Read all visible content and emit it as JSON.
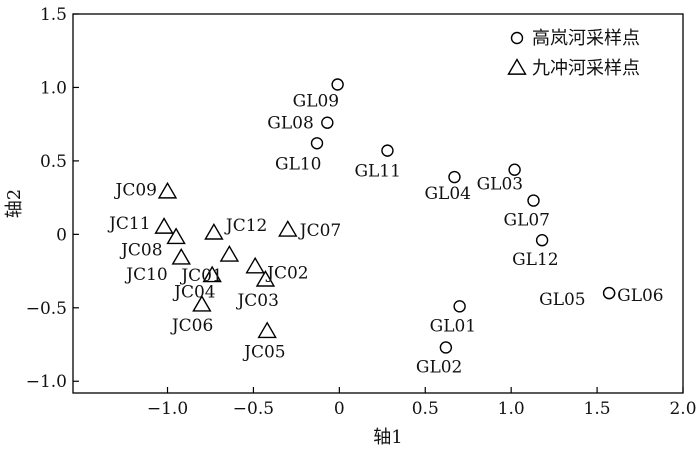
{
  "chart_data": {
    "type": "scatter",
    "xlabel": "轴1",
    "ylabel": "轴2",
    "xlim": [
      -1.55,
      2.0
    ],
    "ylim": [
      -1.08,
      1.5
    ],
    "xticks": [
      -1.0,
      -0.5,
      0,
      0.5,
      1.0,
      1.5,
      2.0
    ],
    "xtick_labels": [
      "−1.0",
      "−0.5",
      "0",
      "0.5",
      "1.0",
      "1.5",
      "2.0"
    ],
    "yticks": [
      -1.0,
      -0.5,
      0,
      0.5,
      1.0,
      1.5
    ],
    "ytick_labels": [
      "−1.0",
      "−0.5",
      "0",
      "0.5",
      "1.0",
      "1.5"
    ],
    "grid": false,
    "legend_position": "top-right",
    "series": [
      {
        "name": "高岚河采样点",
        "marker": "circle",
        "points": [
          {
            "label": "GL01",
            "x": 0.7,
            "y": -0.49
          },
          {
            "label": "GL02",
            "x": 0.62,
            "y": -0.77
          },
          {
            "label": "GL03",
            "x": 1.02,
            "y": 0.44
          },
          {
            "label": "GL04",
            "x": 0.67,
            "y": 0.39
          },
          {
            "label": "GL05",
            "x": 1.57,
            "y": -0.4
          },
          {
            "label": "GL06",
            "x": 1.57,
            "y": -0.4
          },
          {
            "label": "GL07",
            "x": 1.13,
            "y": 0.23
          },
          {
            "label": "GL08",
            "x": -0.07,
            "y": 0.76
          },
          {
            "label": "GL09",
            "x": -0.01,
            "y": 1.02
          },
          {
            "label": "GL10",
            "x": -0.13,
            "y": 0.62
          },
          {
            "label": "GL11",
            "x": 0.28,
            "y": 0.57
          },
          {
            "label": "GL12",
            "x": 1.18,
            "y": -0.04
          }
        ]
      },
      {
        "name": "九冲河采样点",
        "marker": "triangle",
        "points": [
          {
            "label": "JC01",
            "x": -0.64,
            "y": -0.14
          },
          {
            "label": "JC02",
            "x": -0.49,
            "y": -0.22
          },
          {
            "label": "JC03",
            "x": -0.43,
            "y": -0.31
          },
          {
            "label": "JC04",
            "x": -0.74,
            "y": -0.28
          },
          {
            "label": "JC05",
            "x": -0.42,
            "y": -0.66
          },
          {
            "label": "JC06",
            "x": -0.8,
            "y": -0.48
          },
          {
            "label": "JC07",
            "x": -0.3,
            "y": 0.03
          },
          {
            "label": "JC08",
            "x": -0.95,
            "y": -0.02
          },
          {
            "label": "JC09",
            "x": -1.0,
            "y": 0.29
          },
          {
            "label": "JC10",
            "x": -0.92,
            "y": -0.16
          },
          {
            "label": "JC11",
            "x": -1.02,
            "y": 0.05
          },
          {
            "label": "JC12",
            "x": -0.73,
            "y": 0.01
          }
        ]
      }
    ]
  }
}
